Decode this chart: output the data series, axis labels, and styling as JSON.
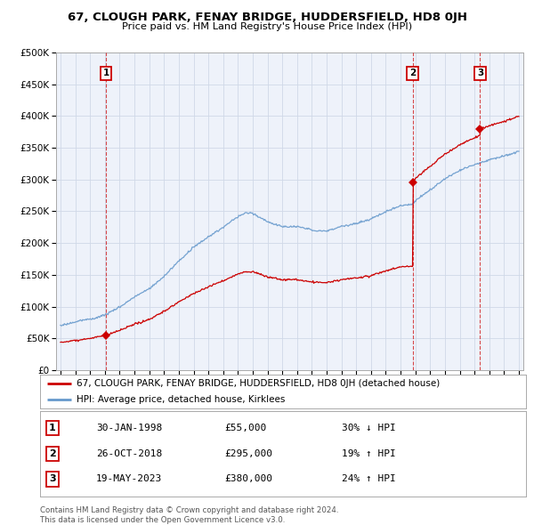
{
  "title1": "67, CLOUGH PARK, FENAY BRIDGE, HUDDERSFIELD, HD8 0JH",
  "title2": "Price paid vs. HM Land Registry's House Price Index (HPI)",
  "ylim": [
    0,
    500000
  ],
  "yticks": [
    0,
    50000,
    100000,
    150000,
    200000,
    250000,
    300000,
    350000,
    400000,
    450000,
    500000
  ],
  "ytick_labels": [
    "£0",
    "£50K",
    "£100K",
    "£150K",
    "£200K",
    "£250K",
    "£300K",
    "£350K",
    "£400K",
    "£450K",
    "£500K"
  ],
  "xlim_start": 1994.7,
  "xlim_end": 2026.3,
  "xticks": [
    1995,
    1996,
    1997,
    1998,
    1999,
    2000,
    2001,
    2002,
    2003,
    2004,
    2005,
    2006,
    2007,
    2008,
    2009,
    2010,
    2011,
    2012,
    2013,
    2014,
    2015,
    2016,
    2017,
    2018,
    2019,
    2020,
    2021,
    2022,
    2023,
    2024,
    2025,
    2026
  ],
  "sale_dates": [
    1998.08,
    2018.82,
    2023.38
  ],
  "sale_prices": [
    55000,
    295000,
    380000
  ],
  "sale_labels": [
    "1",
    "2",
    "3"
  ],
  "red_color": "#cc0000",
  "blue_color": "#6699cc",
  "legend_entry1": "67, CLOUGH PARK, FENAY BRIDGE, HUDDERSFIELD, HD8 0JH (detached house)",
  "legend_entry2": "HPI: Average price, detached house, Kirklees",
  "table_rows": [
    [
      "1",
      "30-JAN-1998",
      "£55,000",
      "30% ↓ HPI"
    ],
    [
      "2",
      "26-OCT-2018",
      "£295,000",
      "19% ↑ HPI"
    ],
    [
      "3",
      "19-MAY-2023",
      "£380,000",
      "24% ↑ HPI"
    ]
  ],
  "footer": "Contains HM Land Registry data © Crown copyright and database right 2024.\nThis data is licensed under the Open Government Licence v3.0.",
  "bg_color": "#ffffff",
  "grid_color": "#d0d8e8",
  "plot_bg": "#eef2fa"
}
